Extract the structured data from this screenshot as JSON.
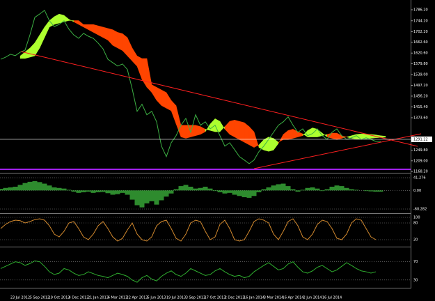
{
  "chart_data": [
    {
      "type": "line",
      "categories": [
        null,
        null,
        null,
        null,
        "23 Jul 2012",
        null,
        null,
        null,
        "5 Sep 2012",
        null,
        null,
        null,
        "19 Oct 2012",
        null,
        null,
        null,
        "4 Dec 2012",
        null,
        null,
        null,
        "21 Jan 2013",
        null,
        null,
        null,
        "6 Mar 2013",
        null,
        null,
        null,
        "22 Apr 2013",
        null,
        null,
        null,
        "5 Jun 2013",
        null,
        null,
        null,
        "19 Jul 2013",
        null,
        null,
        null,
        "3 Sep 2013",
        null,
        null,
        null,
        "17 Oct 2013",
        null,
        null,
        null,
        "2 Dec 2013",
        null,
        null,
        null,
        "16 Jan 2014",
        null,
        null,
        null,
        "3 Mar 2014",
        null,
        null,
        null,
        "16 Apr 2014",
        null,
        null,
        null,
        "2 Jun 2014",
        null,
        null,
        null,
        "16 Jul 2014",
        null,
        null,
        null,
        null,
        null,
        null,
        null,
        null,
        null,
        null,
        null
      ],
      "series": [
        {
          "color": "#3cb043",
          "values": [
            1597,
            1605,
            1616,
            1611,
            1624,
            1632,
            1690,
            1757,
            1770,
            1784,
            1744,
            1722,
            1730,
            1744,
            1712,
            1690,
            1677,
            1696,
            1685,
            1677,
            1659,
            1637,
            1597,
            1584,
            1571,
            1579,
            1558,
            1483,
            1398,
            1425,
            1385,
            1398,
            1358,
            1265,
            1225,
            1278,
            1305,
            1345,
            1371,
            1318,
            1385,
            1345,
            1358,
            1331,
            1345,
            1305,
            1265,
            1278,
            1252,
            1225,
            1212,
            1198,
            1212,
            1244,
            1265,
            1291,
            1318,
            1345,
            1358,
            1377,
            1345,
            1318,
            1331,
            1305,
            1313,
            1331,
            1305,
            1291,
            1318,
            1331,
            1305,
            1291,
            1297,
            1305,
            1291,
            1297,
            1291,
            1283,
            1283,
            null
          ]
        }
      ],
      "cloud": [
        {
          "color": "#adff2f",
          "values": [
            null,
            null,
            null,
            null,
            1610,
            1625,
            1640,
            1660,
            1690,
            1720,
            1745,
            1760,
            1770,
            1765,
            1750,
            1740,
            1730,
            1720,
            1710,
            1700,
            1690,
            1680,
            1670,
            1650,
            1640,
            1630,
            1610,
            1590,
            1570,
            1520,
            1490,
            1470,
            1440,
            1420,
            1410,
            1400,
            1350,
            1300,
            1295,
            1300,
            1305,
            1310,
            1320,
            1350,
            1370,
            1360,
            1330,
            1310,
            1300,
            1290,
            1280,
            1270,
            1260,
            1270,
            1290,
            1300,
            1295,
            1280,
            1290,
            1290,
            1295,
            1300,
            1305,
            1325,
            1335,
            1330,
            1315,
            1300,
            1295,
            1290,
            1295,
            1300,
            1305,
            1310,
            1312,
            1312,
            1310,
            1308,
            1305,
            1303
          ]
        },
        {
          "color": "#ff4500",
          "values": [
            null,
            null,
            null,
            null,
            1600,
            1600,
            1605,
            1610,
            1640,
            1680,
            1720,
            1730,
            1735,
            1740,
            1745,
            1745,
            1745,
            1730,
            1730,
            1730,
            1725,
            1720,
            1715,
            1710,
            1700,
            1695,
            1680,
            1640,
            1610,
            1600,
            1600,
            1500,
            1490,
            1480,
            1470,
            1440,
            1420,
            1345,
            1345,
            1345,
            1345,
            1340,
            1330,
            1325,
            1320,
            1320,
            1340,
            1360,
            1365,
            1360,
            1355,
            1340,
            1320,
            1260,
            1250,
            1245,
            1250,
            1275,
            1310,
            1325,
            1330,
            1320,
            1312,
            1300,
            1300,
            1300,
            1305,
            1310,
            1315,
            1315,
            1305,
            1300,
            1295,
            1292,
            1292,
            1293,
            1295,
            1297,
            1298,
            1299
          ]
        }
      ],
      "ylim": [
        1163.2,
        1823.5
      ],
      "yticks": [
        {
          "value": 1786.2,
          "label": "1786.20"
        },
        {
          "value": 1744.2,
          "label": "1744.20"
        },
        {
          "value": 1702.2,
          "label": "1702.20"
        },
        {
          "value": 1662.6,
          "label": "1662.60"
        },
        {
          "value": 1620.6,
          "label": "1620.60"
        },
        {
          "value": 1579.8,
          "label": "1579.80"
        },
        {
          "value": 1539,
          "label": "1539.00"
        },
        {
          "value": 1497.2,
          "label": "1497.20"
        },
        {
          "value": 1456.2,
          "label": "1456.20"
        },
        {
          "value": 1415.4,
          "label": "1415.40"
        },
        {
          "value": 1373.6,
          "label": "1373.60"
        },
        {
          "value": 1249.8,
          "label": "1249.80"
        },
        {
          "value": 1209,
          "label": "1209.00"
        },
        {
          "value": 1168.2,
          "label": "1168.20"
        }
      ],
      "current_price": 1291.22
    },
    {
      "type": "bar",
      "color": "#2e8b2e",
      "values": [
        5,
        8,
        10,
        12,
        18,
        24,
        28,
        30,
        27,
        22,
        16,
        10,
        8,
        6,
        2,
        -4,
        -8,
        -6,
        -4,
        -8,
        -6,
        -5,
        -9,
        -14,
        -12,
        -8,
        -14,
        -30,
        -48,
        -55,
        -42,
        -35,
        -46,
        -32,
        -20,
        -10,
        4,
        14,
        18,
        12,
        6,
        8,
        12,
        6,
        -2,
        -6,
        -10,
        -8,
        -14,
        -18,
        -22,
        -24,
        -18,
        -6,
        4,
        10,
        16,
        20,
        22,
        14,
        4,
        -4,
        2,
        8,
        10,
        6,
        -2,
        4,
        12,
        16,
        14,
        8,
        4,
        2,
        0,
        -2,
        -3,
        -4,
        -4,
        null
      ],
      "ylim": [
        -71.6,
        52.6
      ],
      "yticks": [
        41.276,
        {
          "value": 0,
          "label": "0.00"
        },
        -60.282
      ]
    },
    {
      "type": "line",
      "series": [
        {
          "color": "#d2892e",
          "values": [
            60,
            75,
            85,
            90,
            88,
            80,
            85,
            92,
            95,
            90,
            70,
            40,
            30,
            50,
            80,
            85,
            60,
            30,
            20,
            40,
            70,
            85,
            60,
            30,
            15,
            25,
            55,
            80,
            40,
            20,
            15,
            30,
            70,
            85,
            90,
            60,
            25,
            15,
            40,
            80,
            90,
            85,
            50,
            20,
            30,
            75,
            90,
            60,
            20,
            15,
            20,
            50,
            85,
            95,
            90,
            80,
            40,
            20,
            50,
            85,
            95,
            70,
            30,
            20,
            40,
            75,
            90,
            85,
            60,
            25,
            20,
            40,
            80,
            95,
            90,
            60,
            30,
            20,
            null,
            null
          ]
        }
      ],
      "ylim": [
        0,
        100
      ],
      "yticks": [
        100,
        80,
        20
      ]
    },
    {
      "type": "line",
      "series": [
        {
          "color": "#2fae2f",
          "values": [
            55,
            60,
            65,
            70,
            68,
            62,
            66,
            72,
            70,
            60,
            48,
            42,
            45,
            55,
            52,
            45,
            40,
            42,
            48,
            44,
            40,
            38,
            35,
            40,
            45,
            42,
            38,
            30,
            25,
            35,
            40,
            32,
            28,
            38,
            45,
            50,
            42,
            38,
            45,
            55,
            50,
            45,
            40,
            42,
            50,
            55,
            48,
            42,
            38,
            40,
            35,
            38,
            48,
            55,
            62,
            68,
            60,
            52,
            55,
            65,
            70,
            58,
            48,
            45,
            50,
            58,
            62,
            55,
            48,
            52,
            60,
            68,
            62,
            55,
            50,
            48,
            45,
            48,
            null,
            null
          ]
        }
      ],
      "ylim": [
        13,
        100
      ],
      "yticks": [
        70,
        30
      ]
    }
  ]
}
